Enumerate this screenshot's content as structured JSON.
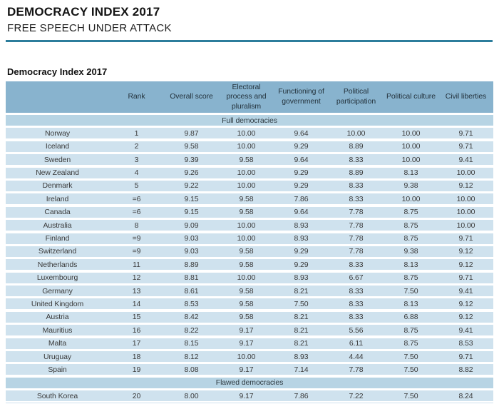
{
  "header": {
    "title": "DEMOCRACY INDEX 2017",
    "subtitle": "FREE SPEECH UNDER ATTACK"
  },
  "table": {
    "title": "Democracy Index 2017",
    "columns": [
      "",
      "Rank",
      "Overall score",
      "Electoral\nprocess and\npluralism",
      "Functioning of\ngovernment",
      "Political\nparticipation",
      "Political culture",
      "Civil liberties"
    ],
    "sections": [
      {
        "label": "Full democracies",
        "rows": [
          [
            "Norway",
            "1",
            "9.87",
            "10.00",
            "9.64",
            "10.00",
            "10.00",
            "9.71"
          ],
          [
            "Iceland",
            "2",
            "9.58",
            "10.00",
            "9.29",
            "8.89",
            "10.00",
            "9.71"
          ],
          [
            "Sweden",
            "3",
            "9.39",
            "9.58",
            "9.64",
            "8.33",
            "10.00",
            "9.41"
          ],
          [
            "New Zealand",
            "4",
            "9.26",
            "10.00",
            "9.29",
            "8.89",
            "8.13",
            "10.00"
          ],
          [
            "Denmark",
            "5",
            "9.22",
            "10.00",
            "9.29",
            "8.33",
            "9.38",
            "9.12"
          ],
          [
            "Ireland",
            "=6",
            "9.15",
            "9.58",
            "7.86",
            "8.33",
            "10.00",
            "10.00"
          ],
          [
            "Canada",
            "=6",
            "9.15",
            "9.58",
            "9.64",
            "7.78",
            "8.75",
            "10.00"
          ],
          [
            "Australia",
            "8",
            "9.09",
            "10.00",
            "8.93",
            "7.78",
            "8.75",
            "10.00"
          ],
          [
            "Finland",
            "=9",
            "9.03",
            "10.00",
            "8.93",
            "7.78",
            "8.75",
            "9.71"
          ],
          [
            "Switzerland",
            "=9",
            "9.03",
            "9.58",
            "9.29",
            "7.78",
            "9.38",
            "9.12"
          ],
          [
            "Netherlands",
            "11",
            "8.89",
            "9.58",
            "9.29",
            "8.33",
            "8.13",
            "9.12"
          ],
          [
            "Luxembourg",
            "12",
            "8.81",
            "10.00",
            "8.93",
            "6.67",
            "8.75",
            "9.71"
          ],
          [
            "Germany",
            "13",
            "8.61",
            "9.58",
            "8.21",
            "8.33",
            "7.50",
            "9.41"
          ],
          [
            "United Kingdom",
            "14",
            "8.53",
            "9.58",
            "7.50",
            "8.33",
            "8.13",
            "9.12"
          ],
          [
            "Austria",
            "15",
            "8.42",
            "9.58",
            "8.21",
            "8.33",
            "6.88",
            "9.12"
          ],
          [
            "Mauritius",
            "16",
            "8.22",
            "9.17",
            "8.21",
            "5.56",
            "8.75",
            "9.41"
          ],
          [
            "Malta",
            "17",
            "8.15",
            "9.17",
            "8.21",
            "6.11",
            "8.75",
            "8.53"
          ],
          [
            "Uruguay",
            "18",
            "8.12",
            "10.00",
            "8.93",
            "4.44",
            "7.50",
            "9.71"
          ],
          [
            "Spain",
            "19",
            "8.08",
            "9.17",
            "7.14",
            "7.78",
            "7.50",
            "8.82"
          ]
        ]
      },
      {
        "label": "Flawed democracies",
        "rows": [
          [
            "South Korea",
            "20",
            "8.00",
            "9.17",
            "7.86",
            "7.22",
            "7.50",
            "8.24"
          ]
        ]
      }
    ]
  },
  "colors": {
    "accent_rule": "#2c7d9c",
    "header_band": "#88b3ce",
    "section_row": "#b7d4e4",
    "data_row": "#cfe2ee"
  }
}
